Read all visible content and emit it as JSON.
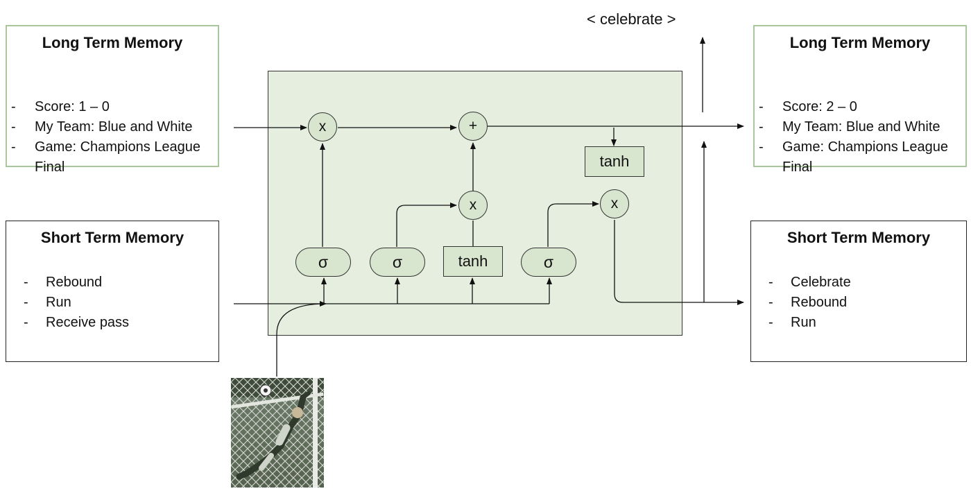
{
  "long_term_memory_in": {
    "title": "Long Term Memory",
    "items": [
      "Score: 1 – 0",
      "My Team: Blue and White",
      "Game: Champions League Final"
    ]
  },
  "long_term_memory_out": {
    "title": "Long Term Memory",
    "items": [
      "Score: 2 – 0",
      "My Team: Blue and White",
      "Game: Champions League Final"
    ]
  },
  "short_term_memory_in": {
    "title": "Short Term Memory",
    "items": [
      "Rebound",
      "Run",
      "Receive pass"
    ]
  },
  "short_term_memory_out": {
    "title": "Short Term Memory",
    "items": [
      "Celebrate",
      "Rebound",
      "Run"
    ]
  },
  "output_label": "< celebrate >",
  "cell": {
    "forget_multiply": "x",
    "add": "+",
    "input_multiply": "x",
    "output_multiply": "x",
    "forget_gate": "σ",
    "input_gate": "σ",
    "candidate": "tanh",
    "output_gate": "σ",
    "cell_tanh": "tanh"
  },
  "colors": {
    "cell_fill": "#e6efdf",
    "node_fill": "#d9e6cf",
    "ltm_border": "#a9c79a"
  }
}
